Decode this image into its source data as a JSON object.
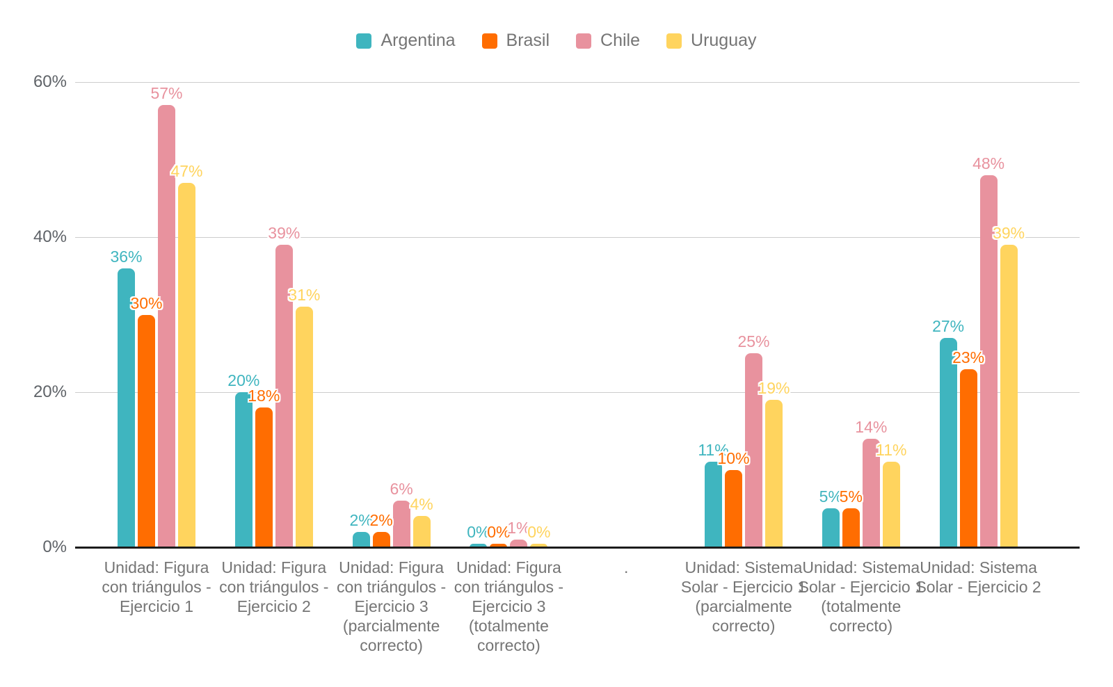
{
  "chart_data": {
    "type": "bar",
    "title": "",
    "xlabel": "",
    "ylabel": "",
    "ylim": [
      0,
      60
    ],
    "grid": true,
    "legend_position": "top",
    "value_label_suffix": "%",
    "yticks": [
      {
        "value": 0,
        "label": "0%"
      },
      {
        "value": 20,
        "label": "20%"
      },
      {
        "value": 40,
        "label": "40%"
      },
      {
        "value": 60,
        "label": "60%"
      }
    ],
    "categories": [
      "Unidad: Figura con triángulos - Ejercicio 1",
      "Unidad: Figura con triángulos - Ejercicio 2",
      "Unidad: Figura con triángulos - Ejercicio 3 (parcialmente correcto)",
      "Unidad: Figura con triángulos - Ejercicio 3 (totalmente correcto)",
      ".",
      "Unidad: Sistema Solar - Ejercicio 1 (parcialmente correcto)",
      "Unidad: Sistema Solar - Ejercicio 1 (totalmente correcto)",
      "Unidad: Sistema Solar - Ejercicio 2"
    ],
    "series": [
      {
        "name": "Argentina",
        "color": "#3FB5BF",
        "values": [
          36,
          20,
          2,
          0,
          null,
          11,
          5,
          27
        ]
      },
      {
        "name": "Brasil",
        "color": "#FF6D01",
        "values": [
          30,
          18,
          2,
          0,
          null,
          10,
          5,
          23
        ]
      },
      {
        "name": "Chile",
        "color": "#E8929E",
        "values": [
          57,
          39,
          6,
          1,
          null,
          25,
          14,
          48
        ]
      },
      {
        "name": "Uruguay",
        "color": "#FFD45E",
        "values": [
          47,
          31,
          4,
          0,
          null,
          19,
          11,
          39
        ]
      }
    ],
    "colors": {
      "gridline": "#cccccc",
      "axis_line": "#1c1c1c",
      "ytick_text": "#5f6368",
      "xtick_text": "#757575",
      "legend_text": "#757575"
    }
  }
}
